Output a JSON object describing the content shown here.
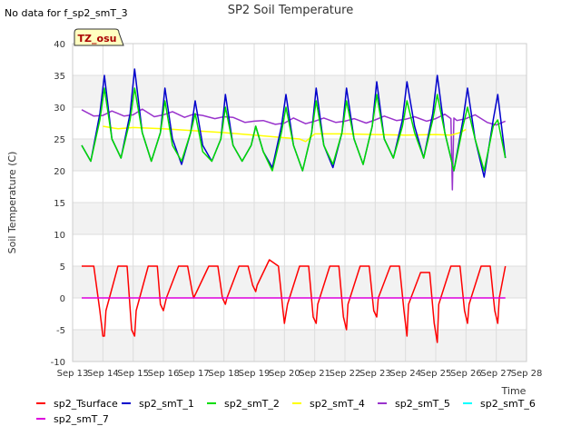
{
  "page": {
    "top_left_note": "No data for f_sp2_smT_3",
    "badge": "TZ_osu"
  },
  "chart_data": {
    "type": "line",
    "title": "SP2 Soil Temperature",
    "xlabel": "Time",
    "ylabel": "Soil Temperature (C)",
    "ylim": [
      -10,
      40
    ],
    "yticks": [
      -10,
      -5,
      0,
      5,
      10,
      15,
      20,
      25,
      30,
      35,
      40
    ],
    "xlim": [
      13,
      28
    ],
    "x_ticks": [
      {
        "value": 13,
        "label": "Sep 13"
      },
      {
        "value": 14,
        "label": "Sep 14"
      },
      {
        "value": 15,
        "label": "Sep 15"
      },
      {
        "value": 16,
        "label": "Sep 16"
      },
      {
        "value": 17,
        "label": "Sep 17"
      },
      {
        "value": 18,
        "label": "Sep 18"
      },
      {
        "value": 19,
        "label": "Sep 19"
      },
      {
        "value": 20,
        "label": "Sep 20"
      },
      {
        "value": 21,
        "label": "Sep 21"
      },
      {
        "value": 22,
        "label": "Sep 22"
      },
      {
        "value": 23,
        "label": "Sep 23"
      },
      {
        "value": 24,
        "label": "Sep 24"
      },
      {
        "value": 25,
        "label": "Sep 25"
      },
      {
        "value": 26,
        "label": "Sep 26"
      },
      {
        "value": 27,
        "label": "Sep 27"
      },
      {
        "value": 28,
        "label": "Sep 28"
      }
    ],
    "grid": true,
    "legend_position": "bottom",
    "series": [
      {
        "name": "sp2_Tsurface",
        "color": "#ff0000",
        "x": [
          13.3,
          13.7,
          13.9,
          14.0,
          14.05,
          14.1,
          14.5,
          14.8,
          14.95,
          15.05,
          15.1,
          15.5,
          15.8,
          15.9,
          16.0,
          16.1,
          16.5,
          16.8,
          16.95,
          17.0,
          17.1,
          17.5,
          17.8,
          17.95,
          18.05,
          18.1,
          18.5,
          18.8,
          18.95,
          19.05,
          19.1,
          19.5,
          19.8,
          19.95,
          20.0,
          20.1,
          20.5,
          20.8,
          20.95,
          21.05,
          21.1,
          21.5,
          21.8,
          21.95,
          22.05,
          22.1,
          22.5,
          22.8,
          22.95,
          23.05,
          23.1,
          23.5,
          23.8,
          23.95,
          24.05,
          24.1,
          24.5,
          24.8,
          24.95,
          25.05,
          25.1,
          25.5,
          25.8,
          25.95,
          26.05,
          26.1,
          26.5,
          26.8,
          26.95,
          27.05,
          27.1,
          27.3
        ],
        "y": [
          5,
          5,
          -2,
          -6,
          -6,
          -2,
          5,
          5,
          -5,
          -6,
          -2,
          5,
          5,
          -1,
          -2,
          0,
          5,
          5,
          1,
          0,
          1,
          5,
          5,
          0,
          -1,
          0,
          5,
          5,
          2,
          1,
          2,
          6,
          5,
          -2,
          -4,
          -1,
          5,
          5,
          -3,
          -4,
          -1,
          5,
          5,
          -3,
          -5,
          -1,
          5,
          5,
          -2,
          -3,
          0,
          5,
          5,
          -2,
          -6,
          -1,
          4,
          4,
          -4,
          -7,
          -1,
          5,
          5,
          -2,
          -4,
          -1,
          5,
          5,
          -2,
          -4,
          0,
          5
        ]
      },
      {
        "name": "sp2_smT_1",
        "color": "#0000cc",
        "x": [
          13.3,
          13.6,
          13.9,
          14.05,
          14.3,
          14.6,
          14.9,
          15.05,
          15.3,
          15.6,
          15.9,
          16.05,
          16.3,
          16.6,
          16.9,
          17.05,
          17.3,
          17.6,
          17.9,
          18.05,
          18.3,
          18.6,
          18.9,
          19.05,
          19.3,
          19.6,
          19.9,
          20.05,
          20.3,
          20.6,
          20.9,
          21.05,
          21.3,
          21.6,
          21.9,
          22.05,
          22.3,
          22.6,
          22.9,
          23.05,
          23.3,
          23.6,
          23.9,
          24.05,
          24.3,
          24.6,
          24.9,
          25.05,
          25.3,
          25.6,
          25.9,
          26.05,
          26.3,
          26.6,
          26.9,
          27.05,
          27.3
        ],
        "y": [
          24,
          21.5,
          29,
          35,
          25,
          22,
          29,
          36,
          26,
          21.5,
          26,
          33,
          25,
          21,
          26,
          31,
          24,
          21.5,
          25,
          32,
          24,
          21.5,
          24,
          27,
          23,
          20.5,
          27,
          32,
          24,
          20,
          26,
          33,
          24,
          20.5,
          26,
          33,
          25,
          21,
          27,
          34,
          25,
          22,
          28,
          34,
          27,
          22,
          29,
          35,
          26,
          20,
          28,
          33,
          25,
          19,
          28,
          32,
          22
        ]
      },
      {
        "name": "sp2_smT_2",
        "color": "#00dd00",
        "x": [
          13.3,
          13.6,
          13.9,
          14.05,
          14.3,
          14.6,
          14.9,
          15.05,
          15.3,
          15.6,
          15.9,
          16.05,
          16.3,
          16.6,
          16.9,
          17.05,
          17.3,
          17.6,
          17.9,
          18.05,
          18.3,
          18.6,
          18.9,
          19.05,
          19.3,
          19.6,
          19.9,
          20.05,
          20.3,
          20.6,
          20.9,
          21.05,
          21.3,
          21.6,
          21.9,
          22.05,
          22.3,
          22.6,
          22.9,
          23.05,
          23.3,
          23.6,
          23.9,
          24.05,
          24.3,
          24.6,
          24.9,
          25.05,
          25.3,
          25.6,
          25.9,
          26.05,
          26.3,
          26.6,
          26.9,
          27.05,
          27.3
        ],
        "y": [
          24,
          21.5,
          28,
          33,
          25,
          22,
          28,
          33,
          26,
          21.5,
          26,
          31,
          24,
          21.5,
          26,
          29,
          23,
          21.5,
          25,
          30,
          24,
          21.5,
          24,
          27,
          23,
          20,
          26,
          30,
          24,
          20,
          26,
          31,
          24,
          21,
          26,
          31,
          25,
          21,
          27,
          32,
          25,
          22,
          27,
          31,
          26,
          22,
          28,
          32,
          26,
          20,
          27,
          30,
          25,
          20,
          27,
          28,
          22
        ]
      },
      {
        "name": "sp2_smT_4",
        "color": "#ffff00",
        "x": [
          14.0,
          14.5,
          15.0,
          16.0,
          17.0,
          18.0,
          19.0,
          20.0,
          20.5,
          20.7,
          21.0,
          22.0,
          23.0,
          24.0,
          25.0,
          25.5,
          25.8,
          26.0
        ],
        "y": [
          27,
          26.6,
          26.8,
          26.6,
          26.3,
          26,
          25.6,
          25.2,
          25,
          24.6,
          25.8,
          25.8,
          25.7,
          25.6,
          25.7,
          25.6,
          26,
          26.5
        ]
      },
      {
        "name": "sp2_smT_5",
        "color": "#9933cc",
        "x": [
          13.3,
          13.7,
          14.0,
          14.3,
          14.7,
          15.0,
          15.3,
          15.7,
          16.0,
          16.3,
          16.7,
          17.0,
          17.3,
          17.7,
          18.0,
          18.3,
          18.7,
          19.0,
          19.3,
          19.7,
          20.0,
          20.3,
          20.7,
          21.0,
          21.3,
          21.7,
          22.0,
          22.3,
          22.7,
          23.0,
          23.3,
          23.7,
          24.0,
          24.3,
          24.7,
          25.0,
          25.3,
          25.5,
          25.55,
          25.6,
          25.7,
          26.0,
          26.3,
          26.7,
          27.0,
          27.3
        ],
        "y": [
          29.6,
          28.6,
          28.7,
          29.4,
          28.6,
          28.8,
          29.7,
          28.5,
          28.8,
          29.3,
          28.4,
          28.9,
          28.7,
          28.2,
          28.5,
          28.4,
          27.6,
          27.8,
          27.9,
          27.3,
          27.5,
          28.3,
          27.4,
          27.8,
          28.3,
          27.6,
          27.8,
          28.2,
          27.5,
          28.0,
          28.6,
          27.9,
          28.1,
          28.5,
          27.8,
          28.2,
          28.9,
          28.2,
          17,
          28.3,
          27.9,
          28.2,
          28.8,
          27.6,
          27.2,
          27.8
        ]
      },
      {
        "name": "sp2_smT_6",
        "color": "#00ffff",
        "x": [],
        "y": []
      },
      {
        "name": "sp2_smT_7",
        "color": "#dd00dd",
        "x": [
          13.3,
          27.3
        ],
        "y": [
          0,
          0
        ]
      }
    ]
  }
}
